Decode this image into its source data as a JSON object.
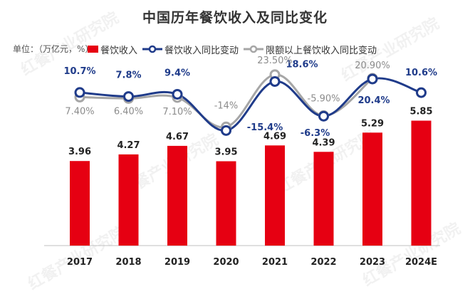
{
  "title": "中国历年餐饮收入及同比变化",
  "unit_label": "单位：（万亿元，%）",
  "watermark": "红餐产业研究院",
  "colors": {
    "bar": "#e60012",
    "line_yoy": "#1f3b8a",
    "line_above_limit": "#a6a6a6",
    "bar_label": "#222222",
    "axis_label": "#222222"
  },
  "legend": [
    {
      "label": "餐饮收入",
      "symbol": "bar"
    },
    {
      "label": "餐饮收入同比变动",
      "symbol": "line-marker-navy"
    },
    {
      "label": "限额以上餐饮收入同比变动",
      "symbol": "line-marker-gray"
    }
  ],
  "chart_data": {
    "type": "bar",
    "title": "中国历年餐饮收入及同比变化",
    "categories": [
      "2017",
      "2018",
      "2019",
      "2020",
      "2021",
      "2022",
      "2023",
      "2024E"
    ],
    "series": [
      {
        "name": "餐饮收入",
        "type": "bar",
        "values": [
          3.96,
          4.27,
          4.67,
          3.95,
          4.69,
          4.39,
          5.29,
          5.85
        ],
        "labels": [
          "3.96",
          "4.27",
          "4.67",
          "3.95",
          "4.69",
          "4.39",
          "5.29",
          "5.85"
        ]
      },
      {
        "name": "餐饮收入同比变动",
        "type": "line",
        "values": [
          10.7,
          7.8,
          9.4,
          -16.6,
          18.6,
          -6.3,
          20.4,
          10.6
        ],
        "labels": [
          "10.7%",
          "7.8%",
          "9.4%",
          "",
          "18.6%",
          "-6.3%",
          "20.4%",
          "10.6%"
        ]
      },
      {
        "name": "限额以上餐饮收入同比变动",
        "type": "line",
        "values": [
          7.4,
          6.4,
          7.1,
          -14,
          23.5,
          -5.9,
          20.9,
          null
        ],
        "labels": [
          "7.40%",
          "6.40%",
          "7.10%",
          "-14%",
          "23.50%",
          "-5.90%",
          "20.90%",
          ""
        ]
      },
      {
        "name": "",
        "type": "annotation",
        "values": [
          null,
          null,
          null,
          null,
          -15.4,
          null,
          null,
          null
        ],
        "labels": [
          "",
          "",
          "",
          "",
          "-15.4%",
          "",
          "",
          ""
        ]
      }
    ],
    "ylim_bars": [
      0,
      6
    ],
    "legend_position": "top",
    "grid": false
  }
}
